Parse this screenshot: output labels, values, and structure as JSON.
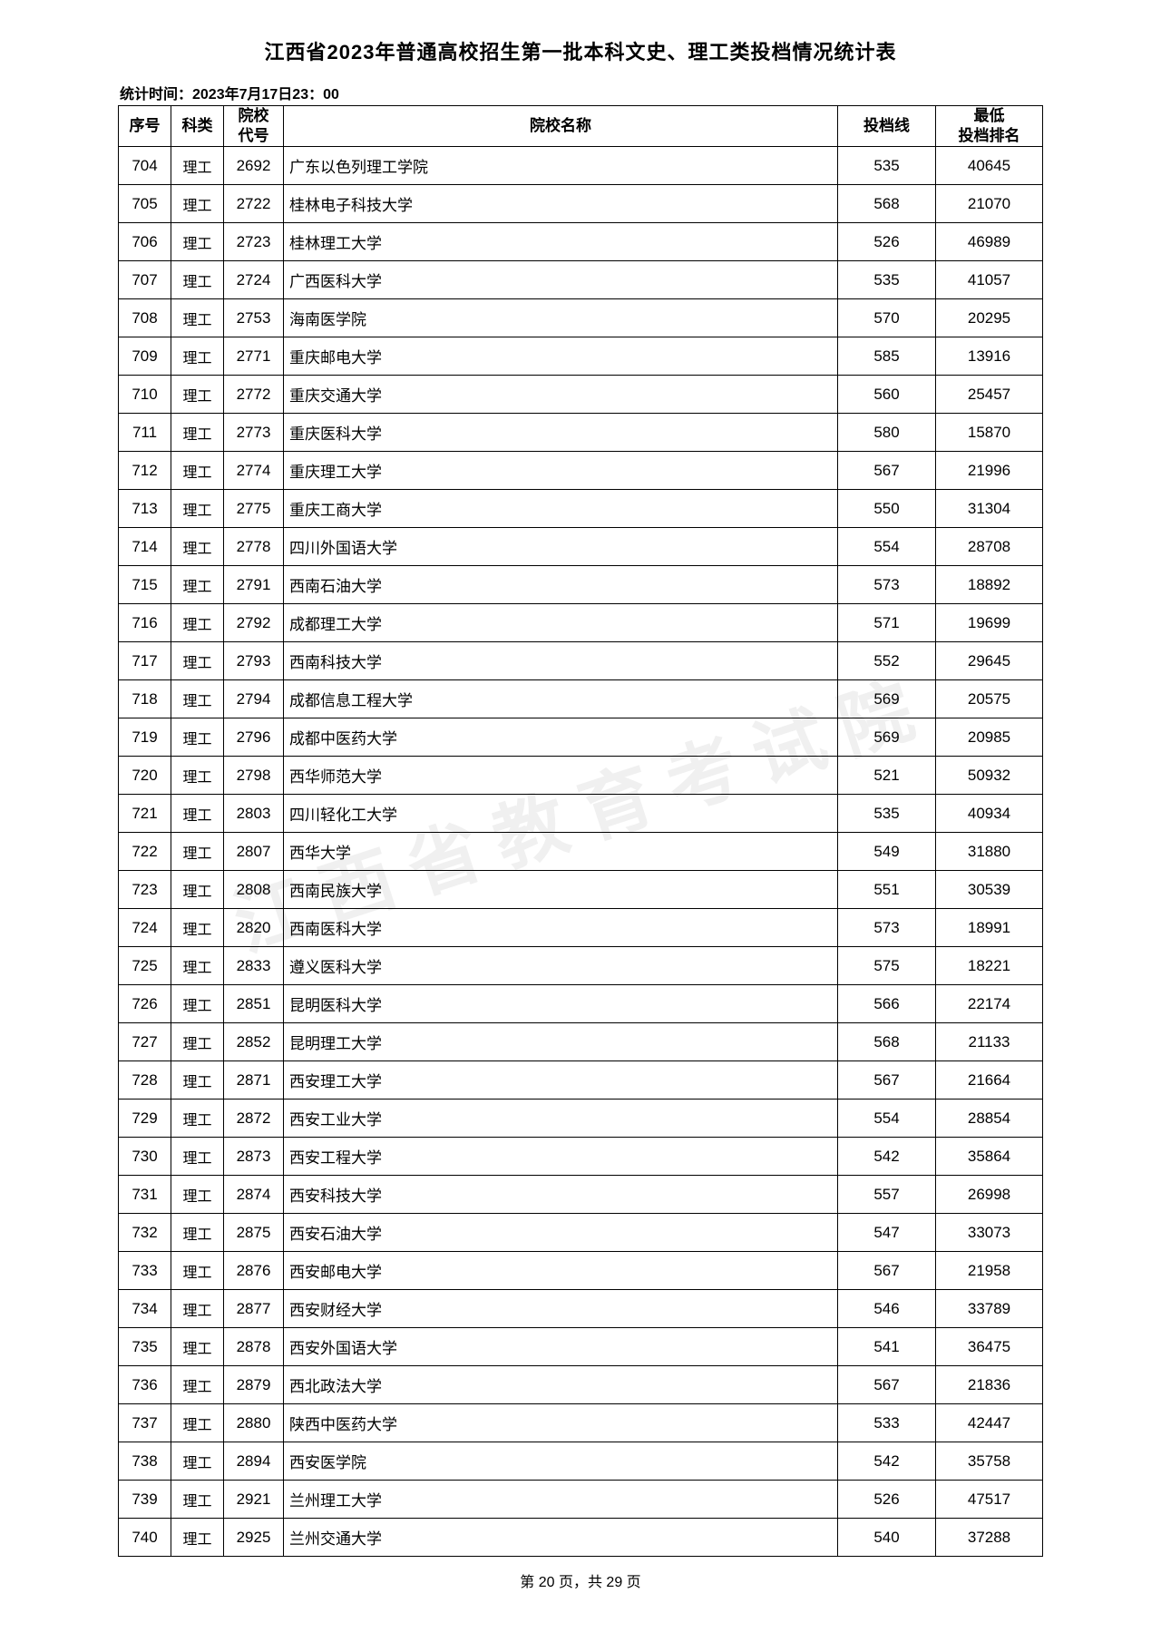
{
  "title": "江西省2023年普通高校招生第一批本科文史、理工类投档情况统计表",
  "timestamp_label": "统计时间：2023年7月17日23：00",
  "watermark_text": "江西省教育考试院",
  "columns": {
    "seq": "序号",
    "cat": "科类",
    "code": "院校\n代号",
    "name": "院校名称",
    "score": "投档线",
    "rank": "最低\n投档排名"
  },
  "rows": [
    {
      "seq": "704",
      "cat": "理工",
      "code": "2692",
      "name": "广东以色列理工学院",
      "score": "535",
      "rank": "40645"
    },
    {
      "seq": "705",
      "cat": "理工",
      "code": "2722",
      "name": "桂林电子科技大学",
      "score": "568",
      "rank": "21070"
    },
    {
      "seq": "706",
      "cat": "理工",
      "code": "2723",
      "name": "桂林理工大学",
      "score": "526",
      "rank": "46989"
    },
    {
      "seq": "707",
      "cat": "理工",
      "code": "2724",
      "name": "广西医科大学",
      "score": "535",
      "rank": "41057"
    },
    {
      "seq": "708",
      "cat": "理工",
      "code": "2753",
      "name": "海南医学院",
      "score": "570",
      "rank": "20295"
    },
    {
      "seq": "709",
      "cat": "理工",
      "code": "2771",
      "name": "重庆邮电大学",
      "score": "585",
      "rank": "13916"
    },
    {
      "seq": "710",
      "cat": "理工",
      "code": "2772",
      "name": "重庆交通大学",
      "score": "560",
      "rank": "25457"
    },
    {
      "seq": "711",
      "cat": "理工",
      "code": "2773",
      "name": "重庆医科大学",
      "score": "580",
      "rank": "15870"
    },
    {
      "seq": "712",
      "cat": "理工",
      "code": "2774",
      "name": "重庆理工大学",
      "score": "567",
      "rank": "21996"
    },
    {
      "seq": "713",
      "cat": "理工",
      "code": "2775",
      "name": "重庆工商大学",
      "score": "550",
      "rank": "31304"
    },
    {
      "seq": "714",
      "cat": "理工",
      "code": "2778",
      "name": "四川外国语大学",
      "score": "554",
      "rank": "28708"
    },
    {
      "seq": "715",
      "cat": "理工",
      "code": "2791",
      "name": "西南石油大学",
      "score": "573",
      "rank": "18892"
    },
    {
      "seq": "716",
      "cat": "理工",
      "code": "2792",
      "name": "成都理工大学",
      "score": "571",
      "rank": "19699"
    },
    {
      "seq": "717",
      "cat": "理工",
      "code": "2793",
      "name": "西南科技大学",
      "score": "552",
      "rank": "29645"
    },
    {
      "seq": "718",
      "cat": "理工",
      "code": "2794",
      "name": "成都信息工程大学",
      "score": "569",
      "rank": "20575"
    },
    {
      "seq": "719",
      "cat": "理工",
      "code": "2796",
      "name": "成都中医药大学",
      "score": "569",
      "rank": "20985"
    },
    {
      "seq": "720",
      "cat": "理工",
      "code": "2798",
      "name": "西华师范大学",
      "score": "521",
      "rank": "50932"
    },
    {
      "seq": "721",
      "cat": "理工",
      "code": "2803",
      "name": "四川轻化工大学",
      "score": "535",
      "rank": "40934"
    },
    {
      "seq": "722",
      "cat": "理工",
      "code": "2807",
      "name": "西华大学",
      "score": "549",
      "rank": "31880"
    },
    {
      "seq": "723",
      "cat": "理工",
      "code": "2808",
      "name": "西南民族大学",
      "score": "551",
      "rank": "30539"
    },
    {
      "seq": "724",
      "cat": "理工",
      "code": "2820",
      "name": "西南医科大学",
      "score": "573",
      "rank": "18991"
    },
    {
      "seq": "725",
      "cat": "理工",
      "code": "2833",
      "name": "遵义医科大学",
      "score": "575",
      "rank": "18221"
    },
    {
      "seq": "726",
      "cat": "理工",
      "code": "2851",
      "name": "昆明医科大学",
      "score": "566",
      "rank": "22174"
    },
    {
      "seq": "727",
      "cat": "理工",
      "code": "2852",
      "name": "昆明理工大学",
      "score": "568",
      "rank": "21133"
    },
    {
      "seq": "728",
      "cat": "理工",
      "code": "2871",
      "name": "西安理工大学",
      "score": "567",
      "rank": "21664"
    },
    {
      "seq": "729",
      "cat": "理工",
      "code": "2872",
      "name": "西安工业大学",
      "score": "554",
      "rank": "28854"
    },
    {
      "seq": "730",
      "cat": "理工",
      "code": "2873",
      "name": "西安工程大学",
      "score": "542",
      "rank": "35864"
    },
    {
      "seq": "731",
      "cat": "理工",
      "code": "2874",
      "name": "西安科技大学",
      "score": "557",
      "rank": "26998"
    },
    {
      "seq": "732",
      "cat": "理工",
      "code": "2875",
      "name": "西安石油大学",
      "score": "547",
      "rank": "33073"
    },
    {
      "seq": "733",
      "cat": "理工",
      "code": "2876",
      "name": "西安邮电大学",
      "score": "567",
      "rank": "21958"
    },
    {
      "seq": "734",
      "cat": "理工",
      "code": "2877",
      "name": "西安财经大学",
      "score": "546",
      "rank": "33789"
    },
    {
      "seq": "735",
      "cat": "理工",
      "code": "2878",
      "name": "西安外国语大学",
      "score": "541",
      "rank": "36475"
    },
    {
      "seq": "736",
      "cat": "理工",
      "code": "2879",
      "name": "西北政法大学",
      "score": "567",
      "rank": "21836"
    },
    {
      "seq": "737",
      "cat": "理工",
      "code": "2880",
      "name": "陕西中医药大学",
      "score": "533",
      "rank": "42447"
    },
    {
      "seq": "738",
      "cat": "理工",
      "code": "2894",
      "name": "西安医学院",
      "score": "542",
      "rank": "35758"
    },
    {
      "seq": "739",
      "cat": "理工",
      "code": "2921",
      "name": "兰州理工大学",
      "score": "526",
      "rank": "47517"
    },
    {
      "seq": "740",
      "cat": "理工",
      "code": "2925",
      "name": "兰州交通大学",
      "score": "540",
      "rank": "37288"
    }
  ],
  "footer": "第 20 页，共 29 页"
}
